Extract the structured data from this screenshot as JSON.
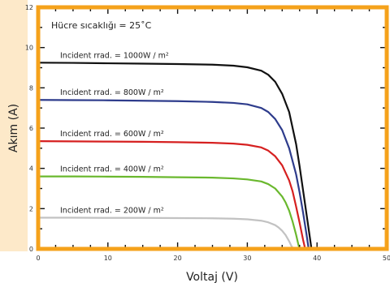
{
  "chart_data": {
    "type": "line",
    "xlabel": "Voltaj (V)",
    "ylabel": "Akım (A)",
    "xlim": [
      0,
      50
    ],
    "ylim": [
      0,
      12
    ],
    "x_ticks": [
      "0",
      "10",
      "20",
      "30",
      "40",
      "50"
    ],
    "y_ticks": [
      "0",
      "2",
      "4",
      "6",
      "8",
      "10",
      "12"
    ],
    "annotation": "Hücre sıcaklığı = 25˚C",
    "grid": false,
    "colors": {
      "frame": "#f5a21b",
      "shadow": "#fde9c9"
    },
    "series": [
      {
        "name": "Incident rrad. = 1000W / m²",
        "color": "#111111",
        "x": [
          0,
          5,
          10,
          15,
          20,
          25,
          28,
          30,
          32,
          33,
          34,
          35,
          36,
          37,
          37.5,
          38,
          38.5,
          39,
          39.2
        ],
        "y": [
          9.25,
          9.24,
          9.22,
          9.2,
          9.18,
          9.15,
          9.1,
          9.02,
          8.85,
          8.65,
          8.3,
          7.7,
          6.8,
          5.2,
          4.1,
          2.9,
          1.7,
          0.5,
          0
        ]
      },
      {
        "name": "Incident rrad. = 800W / m²",
        "color": "#2e3c8c",
        "x": [
          0,
          5,
          10,
          15,
          20,
          25,
          28,
          30,
          32,
          33,
          34,
          35,
          36,
          37,
          37.5,
          38,
          38.5,
          38.8
        ],
        "y": [
          7.4,
          7.39,
          7.38,
          7.36,
          7.34,
          7.3,
          7.25,
          7.18,
          7.0,
          6.8,
          6.45,
          5.9,
          5.0,
          3.7,
          2.8,
          1.8,
          0.7,
          0
        ]
      },
      {
        "name": "Incident rrad. = 600W / m²",
        "color": "#d62020",
        "x": [
          0,
          5,
          10,
          15,
          20,
          25,
          28,
          30,
          32,
          33,
          34,
          35,
          36,
          36.5,
          37,
          37.5,
          38,
          38.3
        ],
        "y": [
          5.35,
          5.34,
          5.33,
          5.32,
          5.3,
          5.27,
          5.23,
          5.17,
          5.04,
          4.88,
          4.6,
          4.15,
          3.4,
          2.85,
          2.1,
          1.3,
          0.45,
          0
        ]
      },
      {
        "name": "Incident rrad. = 400W / m²",
        "color": "#6ab82e",
        "x": [
          0,
          5,
          10,
          15,
          20,
          25,
          28,
          30,
          32,
          33,
          34,
          35,
          35.5,
          36,
          36.5,
          37,
          37.3,
          37.5
        ],
        "y": [
          3.6,
          3.6,
          3.59,
          3.58,
          3.56,
          3.54,
          3.5,
          3.45,
          3.35,
          3.22,
          3.0,
          2.6,
          2.3,
          1.9,
          1.35,
          0.7,
          0.25,
          0
        ]
      },
      {
        "name": "Incident rrad. = 200W / m²",
        "color": "#c2c2c2",
        "x": [
          0,
          5,
          10,
          15,
          20,
          25,
          28,
          30,
          32,
          33,
          34,
          34.5,
          35,
          35.5,
          36,
          36.3,
          36.6
        ],
        "y": [
          1.55,
          1.55,
          1.54,
          1.54,
          1.53,
          1.52,
          1.5,
          1.47,
          1.4,
          1.32,
          1.18,
          1.06,
          0.9,
          0.68,
          0.38,
          0.16,
          0
        ]
      }
    ]
  }
}
